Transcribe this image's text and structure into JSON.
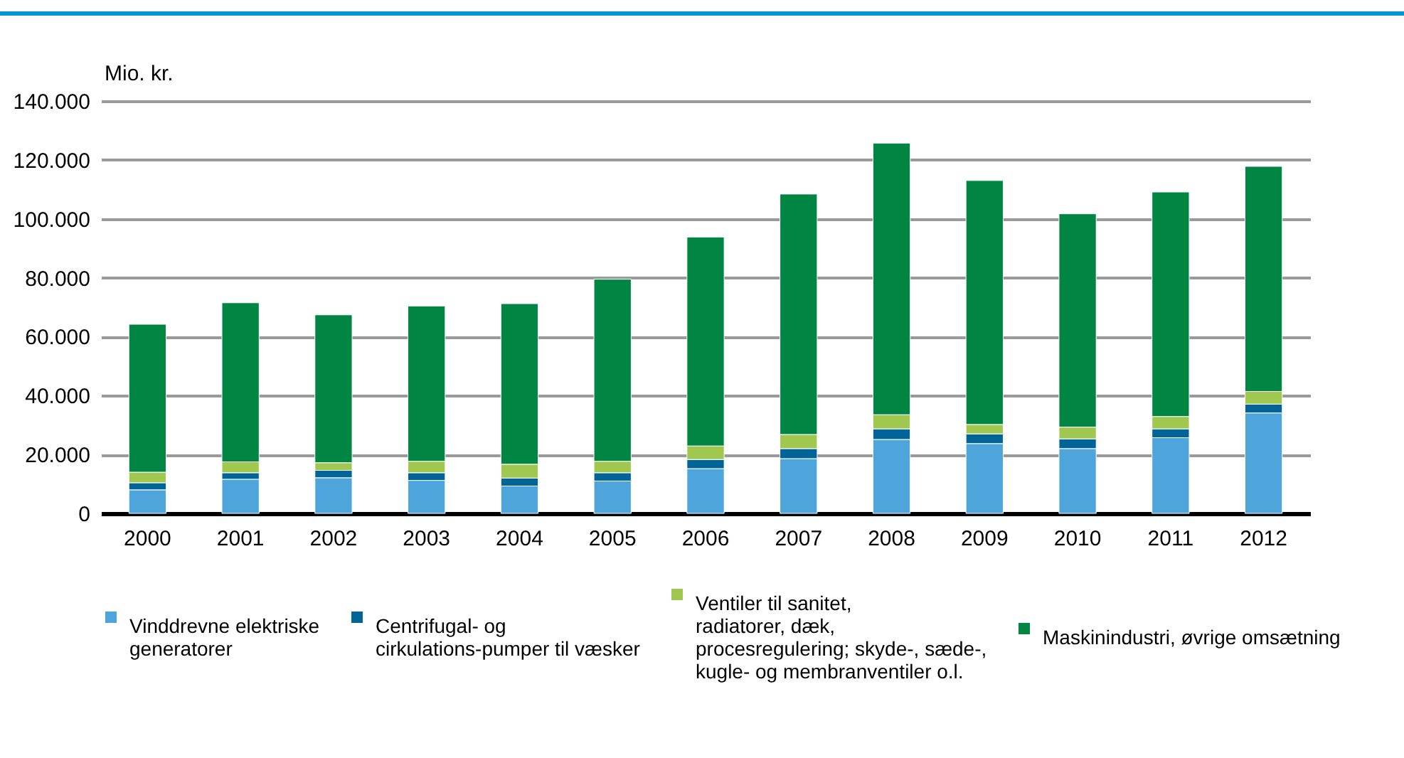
{
  "chart_data": {
    "type": "bar",
    "stacked": true,
    "ylabel": "Mio. kr.",
    "categories": [
      "2000",
      "2001",
      "2002",
      "2003",
      "2004",
      "2005",
      "2006",
      "2007",
      "2008",
      "2009",
      "2010",
      "2011",
      "2012"
    ],
    "series": [
      {
        "name": "Vinddrevne elektriske generatorer",
        "color": "#4ea5dc",
        "values": [
          8000,
          11600,
          12100,
          11200,
          9300,
          11000,
          15200,
          18600,
          25100,
          23700,
          22000,
          25700,
          34100
        ]
      },
      {
        "name": "Centrifugal- og cirkulations-pumper til væsker",
        "color": "#006496",
        "values": [
          2400,
          2200,
          2500,
          2600,
          2700,
          2800,
          3100,
          3400,
          3600,
          3300,
          3300,
          3000,
          3000
        ]
      },
      {
        "name": "Ventiler til sanitet, radiatorer, dæk, procesregulering; skyde-, sæde-, kugle- og membranventiler o.l.",
        "color": "#a0c850",
        "values": [
          3600,
          3700,
          2600,
          3900,
          4700,
          3900,
          4600,
          4800,
          4800,
          3200,
          4000,
          4200,
          4300
        ]
      },
      {
        "name": "Maskinindustri, øvrige omsætning",
        "color": "#008542",
        "values": [
          50200,
          54000,
          50200,
          52700,
          54500,
          61800,
          70900,
          81600,
          92200,
          82800,
          72400,
          76200,
          76400
        ]
      }
    ],
    "ylim": [
      0,
      140000
    ],
    "yticks": [
      {
        "value": 0,
        "label": "0"
      },
      {
        "value": 20000,
        "label": "20.000"
      },
      {
        "value": 40000,
        "label": "40.000"
      },
      {
        "value": 60000,
        "label": "60.000"
      },
      {
        "value": 80000,
        "label": "80.000"
      },
      {
        "value": 100000,
        "label": "100.000"
      },
      {
        "value": 120000,
        "label": "120.000"
      },
      {
        "value": 140000,
        "label": "140.000"
      }
    ],
    "grid": "y",
    "legend": "bottom"
  }
}
